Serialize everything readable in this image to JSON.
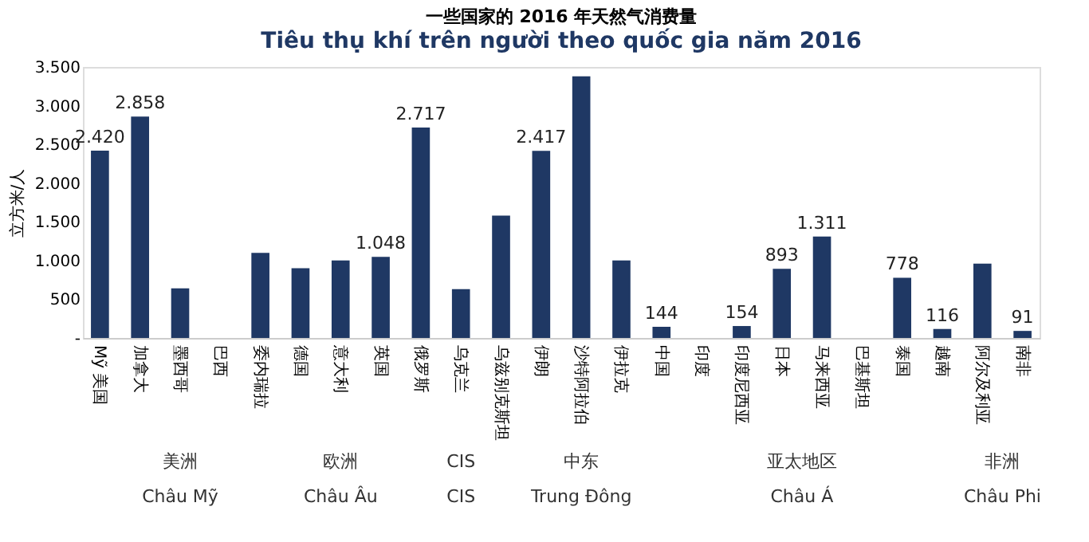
{
  "chart_data": {
    "type": "bar",
    "title": "一些国家的 2016 年天然气消费量",
    "subtitle": "Tiêu thụ khí trên người theo quốc gia năm 2016",
    "ylabel": "立方米/人",
    "categories": [
      "Mỹ 美国",
      "加拿大",
      "墨西哥",
      "巴西",
      "委内瑞拉",
      "德国",
      "意大利",
      "英国",
      "俄罗斯",
      "乌克兰",
      "乌兹别克斯坦",
      "伊朗",
      "沙特阿拉伯",
      "伊拉克",
      "中国",
      "印度",
      "印度尼西亚",
      "日本",
      "马来西亚",
      "巴基斯坦",
      "泰国",
      "越南",
      "阿尔及利亚",
      "南非"
    ],
    "values": [
      2420,
      2858,
      640,
      null,
      1100,
      900,
      1000,
      1048,
      2717,
      630,
      1580,
      2417,
      3380,
      1000,
      144,
      null,
      154,
      893,
      1311,
      null,
      778,
      116,
      960,
      91
    ],
    "value_labels": [
      "2.420",
      "2.858",
      null,
      null,
      null,
      null,
      null,
      "1.048",
      "2.717",
      null,
      null,
      "2.417",
      null,
      null,
      "144",
      null,
      "154",
      "893",
      "1.311",
      null,
      "778",
      "116",
      null,
      "91"
    ],
    "color": "#1f3864",
    "ylim": [
      0,
      3500
    ],
    "yticks": [
      {
        "value": 0,
        "label": "-"
      },
      500,
      {
        "value": 1000,
        "label": "1.000"
      },
      {
        "value": 1500,
        "label": "1.500"
      },
      {
        "value": 2000,
        "label": "2.000"
      },
      {
        "value": 2500,
        "label": "2.500"
      },
      {
        "value": 3000,
        "label": "3.000"
      },
      {
        "value": 3500,
        "label": "3.500"
      }
    ],
    "annotations": [
      "美洲\nChâu Mỹ",
      "欧洲\nChâu Âu",
      "CIS\nCIS",
      "中东\nTrung Đông",
      "亚太地区\nChâu Á",
      "非洲\nChâu Phi"
    ],
    "grid": false
  }
}
